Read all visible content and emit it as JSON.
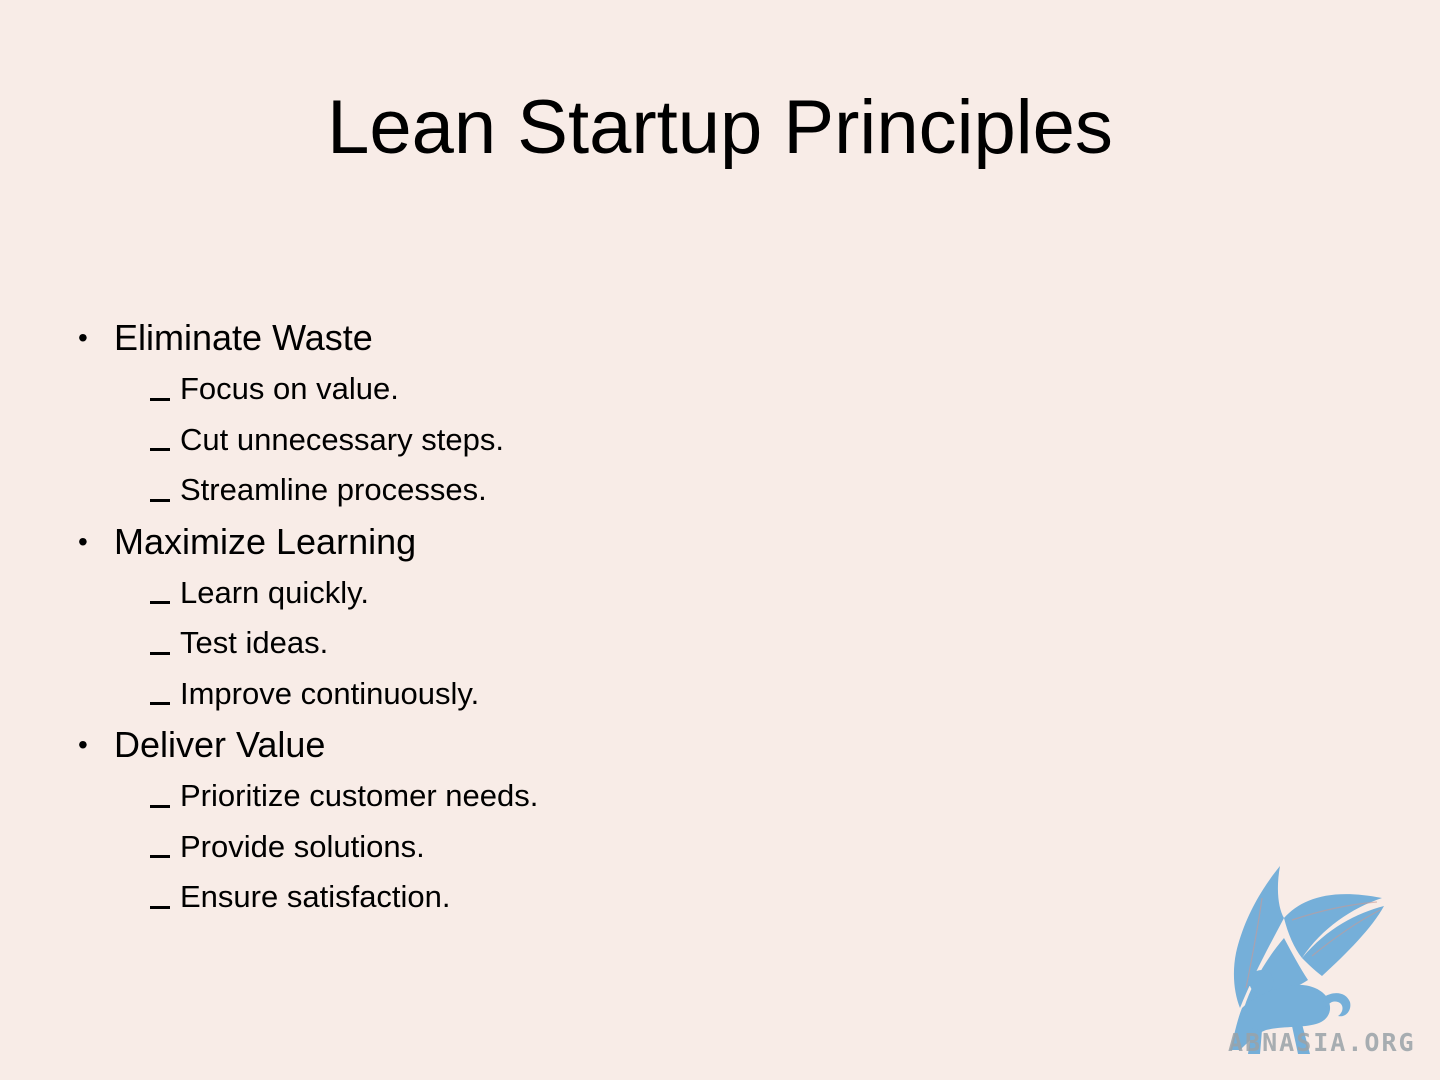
{
  "slide": {
    "title": "Lean Startup Principles",
    "sections": [
      {
        "heading": "Eliminate Waste",
        "items": [
          "Focus on value.",
          "Cut unnecessary steps.",
          "Streamline processes."
        ]
      },
      {
        "heading": "Maximize Learning",
        "items": [
          "Learn quickly.",
          "Test ideas.",
          "Improve continuously."
        ]
      },
      {
        "heading": "Deliver Value",
        "items": [
          "Prioritize customer needs.",
          "Provide solutions.",
          "Ensure satisfaction."
        ]
      }
    ],
    "watermark": "ABNASIA.ORG"
  },
  "colors": {
    "background": "#f8ece7",
    "text": "#000000",
    "logo": "#6aaad8"
  }
}
